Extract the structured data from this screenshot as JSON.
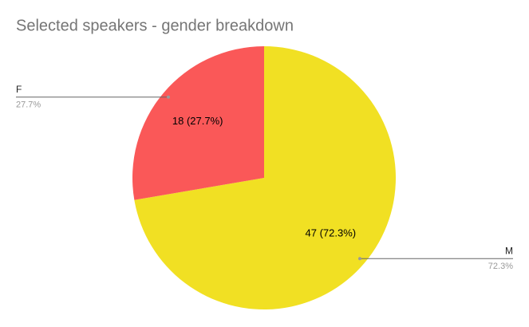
{
  "chart_data": {
    "type": "pie",
    "title": "Selected speakers - gender breakdown",
    "categories": [
      "M",
      "F"
    ],
    "values": [
      47,
      18
    ],
    "value_labels": [
      "47 (72.3%)",
      "18 (27.7%)"
    ],
    "percent_labels": [
      "72.3%",
      "27.7%"
    ],
    "colors": [
      "#f1e023",
      "#fa5858"
    ]
  }
}
